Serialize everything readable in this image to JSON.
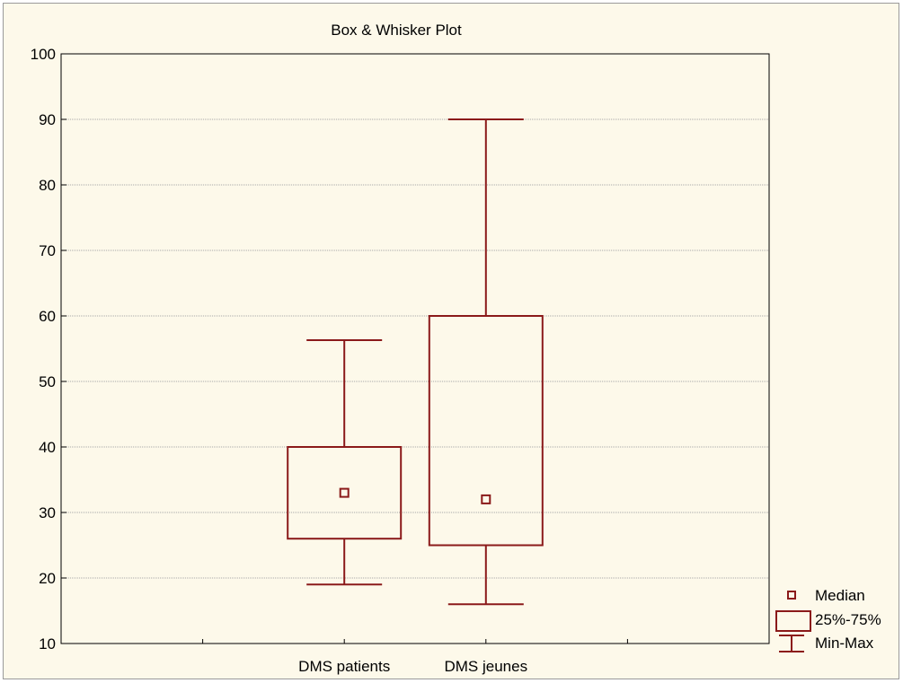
{
  "chart_data": {
    "type": "boxplot",
    "title": "Box & Whisker Plot",
    "xlabel": "",
    "ylabel": "",
    "ylim": [
      10,
      100
    ],
    "yticks": [
      10,
      20,
      30,
      40,
      50,
      60,
      70,
      80,
      90,
      100
    ],
    "grid": true,
    "categories": [
      "DMS patients",
      "DMS jeunes"
    ],
    "boxes": [
      {
        "category": "DMS patients",
        "min": 19,
        "q1": 26,
        "median": 33,
        "q3": 40,
        "max": 56.3
      },
      {
        "category": "DMS jeunes",
        "min": 16,
        "q1": 25,
        "median": 32,
        "q3": 60,
        "max": 90
      }
    ],
    "legend": {
      "placement": "bottom-right",
      "items": [
        "Median",
        "25%-75%",
        "Min-Max"
      ]
    },
    "color": "#8b1a1a"
  }
}
